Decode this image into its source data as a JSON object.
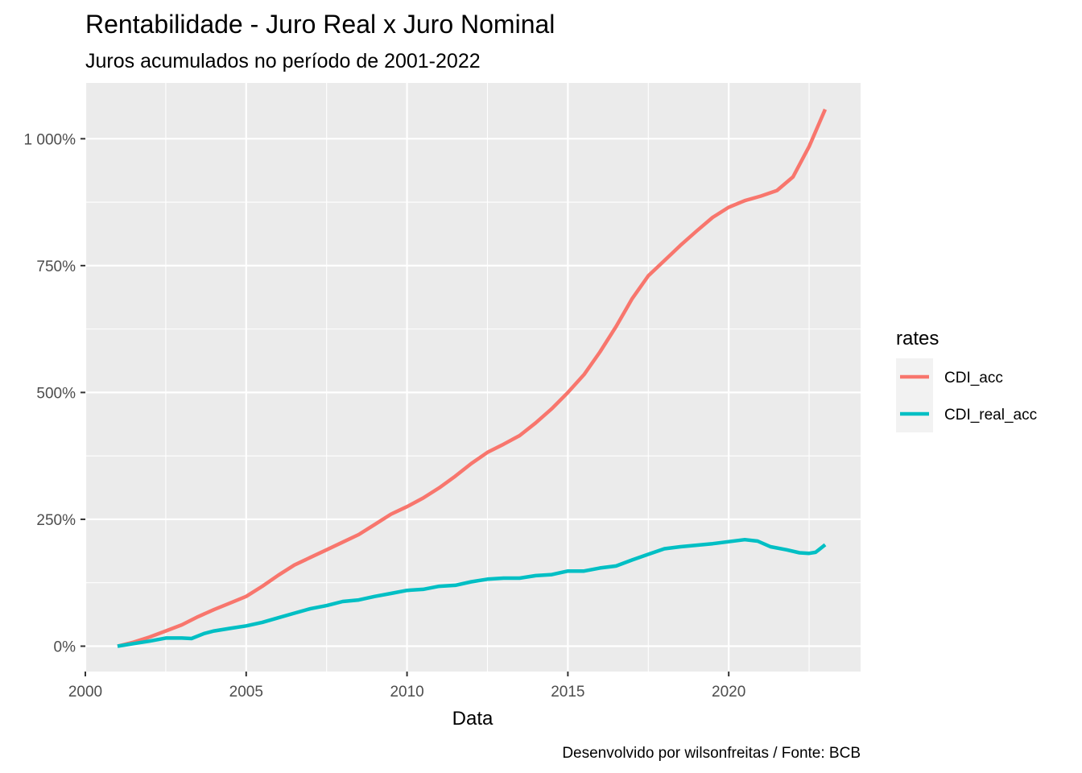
{
  "chart_data": {
    "type": "line",
    "title": "Rentabilidade - Juro Real x Juro Nominal",
    "subtitle": "Juros acumulados no período de 2001-2022",
    "xlabel": "Data",
    "ylabel": "",
    "caption": "Desenvolvido por wilsonfreitas / Fonte: BCB",
    "xlim": [
      2000,
      2024.1
    ],
    "ylim": [
      -50,
      1110
    ],
    "x_ticks": [
      2000,
      2005,
      2010,
      2015,
      2020
    ],
    "x_tick_labels": [
      "2000",
      "2005",
      "2010",
      "2015",
      "2020"
    ],
    "y_ticks": [
      0,
      250,
      500,
      750,
      1000
    ],
    "y_tick_labels": [
      "0%",
      "250%",
      "500%",
      "750%",
      "1 000%"
    ],
    "grid": true,
    "legend": {
      "title": "rates",
      "placement": "right"
    },
    "series": [
      {
        "name": "CDI_acc",
        "color": "#F8766D",
        "points": [
          [
            2001.0,
            0
          ],
          [
            2001.5,
            8
          ],
          [
            2002.0,
            18
          ],
          [
            2002.5,
            30
          ],
          [
            2003.0,
            42
          ],
          [
            2003.5,
            58
          ],
          [
            2004.0,
            72
          ],
          [
            2004.5,
            85
          ],
          [
            2005.0,
            98
          ],
          [
            2005.5,
            118
          ],
          [
            2006.0,
            140
          ],
          [
            2006.5,
            160
          ],
          [
            2007.0,
            175
          ],
          [
            2007.5,
            190
          ],
          [
            2008.0,
            205
          ],
          [
            2008.5,
            220
          ],
          [
            2009.0,
            240
          ],
          [
            2009.5,
            260
          ],
          [
            2010.0,
            275
          ],
          [
            2010.5,
            292
          ],
          [
            2011.0,
            312
          ],
          [
            2011.5,
            335
          ],
          [
            2012.0,
            360
          ],
          [
            2012.5,
            382
          ],
          [
            2013.0,
            398
          ],
          [
            2013.5,
            415
          ],
          [
            2014.0,
            440
          ],
          [
            2014.5,
            468
          ],
          [
            2015.0,
            500
          ],
          [
            2015.5,
            535
          ],
          [
            2016.0,
            580
          ],
          [
            2016.5,
            630
          ],
          [
            2017.0,
            685
          ],
          [
            2017.5,
            730
          ],
          [
            2018.0,
            760
          ],
          [
            2018.5,
            790
          ],
          [
            2019.0,
            818
          ],
          [
            2019.5,
            845
          ],
          [
            2020.0,
            865
          ],
          [
            2020.5,
            878
          ],
          [
            2021.0,
            887
          ],
          [
            2021.5,
            898
          ],
          [
            2022.0,
            925
          ],
          [
            2022.5,
            985
          ],
          [
            2023.0,
            1058
          ]
        ]
      },
      {
        "name": "CDI_real_acc",
        "color": "#00BFC4",
        "points": [
          [
            2001.0,
            0
          ],
          [
            2001.5,
            5
          ],
          [
            2002.0,
            10
          ],
          [
            2002.5,
            16
          ],
          [
            2003.0,
            16
          ],
          [
            2003.3,
            15
          ],
          [
            2003.7,
            25
          ],
          [
            2004.0,
            30
          ],
          [
            2004.5,
            35
          ],
          [
            2005.0,
            40
          ],
          [
            2005.5,
            47
          ],
          [
            2006.0,
            56
          ],
          [
            2006.5,
            65
          ],
          [
            2007.0,
            74
          ],
          [
            2007.5,
            80
          ],
          [
            2008.0,
            88
          ],
          [
            2008.5,
            91
          ],
          [
            2009.0,
            98
          ],
          [
            2009.5,
            104
          ],
          [
            2010.0,
            110
          ],
          [
            2010.5,
            112
          ],
          [
            2011.0,
            118
          ],
          [
            2011.5,
            120
          ],
          [
            2012.0,
            127
          ],
          [
            2012.5,
            132
          ],
          [
            2013.0,
            134
          ],
          [
            2013.5,
            134
          ],
          [
            2014.0,
            139
          ],
          [
            2014.5,
            141
          ],
          [
            2015.0,
            148
          ],
          [
            2015.5,
            148
          ],
          [
            2016.0,
            154
          ],
          [
            2016.5,
            158
          ],
          [
            2017.0,
            170
          ],
          [
            2017.5,
            181
          ],
          [
            2018.0,
            192
          ],
          [
            2018.5,
            196
          ],
          [
            2019.0,
            199
          ],
          [
            2019.5,
            202
          ],
          [
            2020.0,
            206
          ],
          [
            2020.5,
            210
          ],
          [
            2020.9,
            207
          ],
          [
            2021.3,
            196
          ],
          [
            2021.8,
            190
          ],
          [
            2022.2,
            184
          ],
          [
            2022.5,
            183
          ],
          [
            2022.7,
            185
          ],
          [
            2023.0,
            200
          ]
        ]
      }
    ]
  }
}
